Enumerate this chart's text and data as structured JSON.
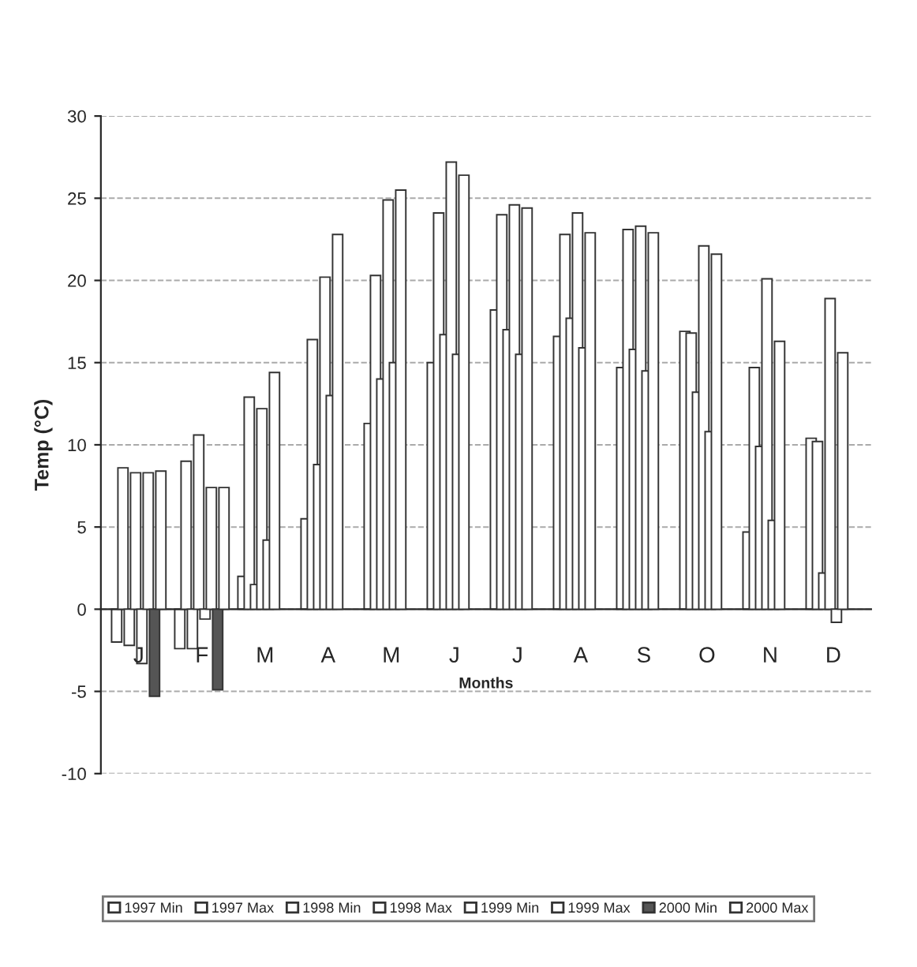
{
  "chart_data": {
    "type": "bar",
    "xlabel": "Months",
    "ylabel": "Temp (°C)",
    "categories": [
      "J",
      "F",
      "M",
      "A",
      "M",
      "J",
      "J",
      "A",
      "S",
      "O",
      "N",
      "D"
    ],
    "series": [
      {
        "name": "1997 Min",
        "color": "#ffffff",
        "values": [
          -2.0,
          -2.4,
          2.0,
          5.5,
          11.3,
          15.0,
          18.2,
          16.6,
          14.7,
          16.9,
          4.7,
          10.4
        ]
      },
      {
        "name": "1997 Max",
        "color": "#ffffff",
        "values": [
          8.6,
          9.0,
          12.9,
          16.4,
          20.3,
          24.1,
          24.0,
          22.8,
          23.1,
          16.8,
          14.7,
          10.2
        ]
      },
      {
        "name": "1998 Min",
        "color": "#ffffff",
        "values": [
          -2.2,
          -2.4,
          1.5,
          8.8,
          14.0,
          16.7,
          17.0,
          17.7,
          15.8,
          13.2,
          9.9,
          2.2
        ]
      },
      {
        "name": "1998 Max",
        "color": "#ffffff",
        "values": [
          8.3,
          10.6,
          12.2,
          20.2,
          24.9,
          27.2,
          24.6,
          24.1,
          23.3,
          22.1,
          20.1,
          18.9
        ]
      },
      {
        "name": "1999 Min",
        "color": "#ffffff",
        "values": [
          -3.3,
          -0.6,
          4.2,
          13.0,
          15.0,
          15.5,
          15.5,
          15.9,
          14.5,
          10.8,
          5.4,
          -0.8
        ]
      },
      {
        "name": "1999 Max",
        "color": "#ffffff",
        "values": [
          8.3,
          7.4,
          14.4,
          22.8,
          25.5,
          26.4,
          24.4,
          22.9,
          22.9,
          21.6,
          16.3,
          15.6
        ]
      },
      {
        "name": "2000 Min",
        "color": "#555555",
        "values": [
          -5.3,
          -4.9,
          null,
          null,
          null,
          null,
          null,
          null,
          null,
          null,
          null,
          null
        ]
      },
      {
        "name": "2000 Max",
        "color": "#ffffff",
        "values": [
          8.4,
          7.4,
          null,
          null,
          null,
          null,
          null,
          null,
          null,
          null,
          null,
          null
        ]
      }
    ],
    "ylim": [
      -10,
      30
    ],
    "yticks": [
      -10,
      -5,
      0,
      5,
      10,
      15,
      20,
      25,
      30
    ],
    "grid": "y",
    "legend": "bottom"
  }
}
